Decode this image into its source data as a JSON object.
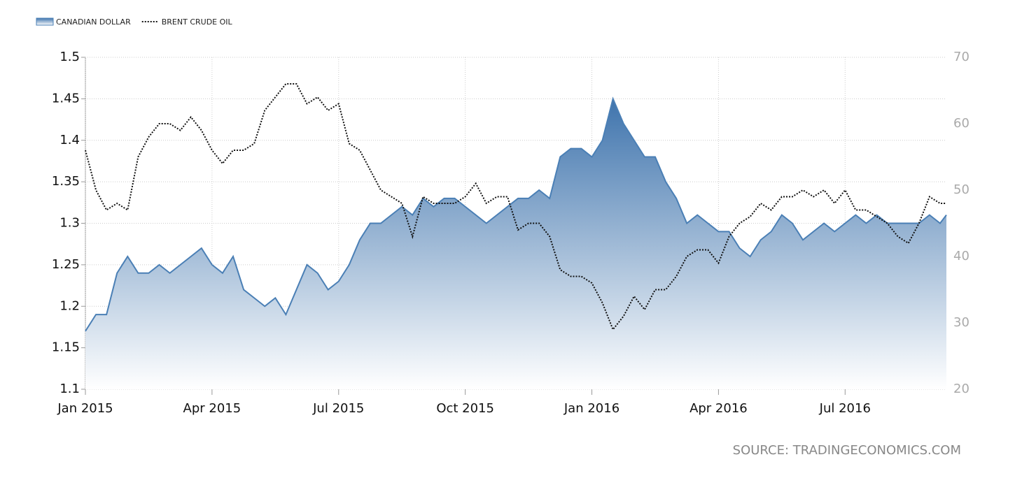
{
  "chart_data": {
    "type": "area",
    "source": "SOURCE: TRADINGECONOMICS.COM",
    "x": [
      0,
      0.25,
      0.5,
      0.75,
      1,
      1.25,
      1.5,
      1.75,
      2,
      2.25,
      2.5,
      2.75,
      3,
      3.25,
      3.5,
      3.75,
      4,
      4.25,
      4.5,
      4.75,
      5,
      5.25,
      5.5,
      5.75,
      6,
      6.25,
      6.5,
      6.75,
      7,
      7.25,
      7.5,
      7.75,
      8,
      8.25,
      8.5,
      8.75,
      9,
      9.25,
      9.5,
      9.75,
      10,
      10.25,
      10.5,
      10.75,
      11,
      11.25,
      11.5,
      11.75,
      12,
      12.25,
      12.5,
      12.75,
      13,
      13.25,
      13.5,
      13.75,
      14,
      14.25,
      14.5,
      14.75,
      15,
      15.25,
      15.5,
      15.75,
      16,
      16.25,
      16.5,
      16.75,
      17,
      17.25,
      17.5,
      17.75,
      18,
      18.25,
      18.5,
      18.75,
      19,
      19.25,
      19.5,
      19.75,
      20,
      20.25,
      20.4
    ],
    "xlim": [
      0,
      20.4
    ],
    "xticks": [
      {
        "value": 0,
        "label": "Jan 2015"
      },
      {
        "value": 3,
        "label": "Apr 2015"
      },
      {
        "value": 6,
        "label": "Jul 2015"
      },
      {
        "value": 9,
        "label": "Oct 2015"
      },
      {
        "value": 12,
        "label": "Jan 2016"
      },
      {
        "value": 15,
        "label": "Apr 2016"
      },
      {
        "value": 18,
        "label": "Jul 2016"
      }
    ],
    "ylim": [
      1.1,
      1.5
    ],
    "yticks": [
      1.1,
      1.15,
      1.2,
      1.25,
      1.3,
      1.35,
      1.4,
      1.45,
      1.5
    ],
    "y2lim": [
      20,
      70
    ],
    "y2ticks": [
      20,
      30,
      40,
      50,
      60,
      70
    ],
    "grid": true,
    "legend": "top-left",
    "series": [
      {
        "name": "CANADIAN DOLLAR",
        "color": "#4a7fb5",
        "kind": "area",
        "values": [
          1.17,
          1.19,
          1.19,
          1.24,
          1.26,
          1.24,
          1.24,
          1.25,
          1.24,
          1.25,
          1.26,
          1.27,
          1.25,
          1.24,
          1.26,
          1.22,
          1.21,
          1.2,
          1.21,
          1.19,
          1.22,
          1.25,
          1.24,
          1.22,
          1.23,
          1.25,
          1.28,
          1.3,
          1.3,
          1.31,
          1.32,
          1.31,
          1.33,
          1.32,
          1.33,
          1.33,
          1.32,
          1.31,
          1.3,
          1.31,
          1.32,
          1.33,
          1.33,
          1.34,
          1.33,
          1.38,
          1.39,
          1.39,
          1.38,
          1.4,
          1.45,
          1.42,
          1.4,
          1.38,
          1.38,
          1.35,
          1.33,
          1.3,
          1.31,
          1.3,
          1.29,
          1.29,
          1.27,
          1.26,
          1.28,
          1.29,
          1.31,
          1.3,
          1.28,
          1.29,
          1.3,
          1.29,
          1.3,
          1.31,
          1.3,
          1.31,
          1.3,
          1.3,
          1.3,
          1.3,
          1.31,
          1.3,
          1.31
        ]
      },
      {
        "name": "BRENT CRUDE OIL",
        "color": "#111111",
        "kind": "dotted",
        "axis": "y2",
        "values": [
          56,
          50,
          47,
          48,
          47,
          55,
          58,
          60,
          60,
          59,
          61,
          59,
          56,
          54,
          56,
          56,
          57,
          62,
          64,
          66,
          66,
          63,
          64,
          62,
          63,
          57,
          56,
          53,
          50,
          49,
          48,
          43,
          49,
          48,
          48,
          48,
          49,
          51,
          48,
          49,
          49,
          44,
          45,
          45,
          43,
          38,
          37,
          37,
          36,
          33,
          29,
          31,
          34,
          32,
          35,
          35,
          37,
          40,
          41,
          41,
          39,
          43,
          45,
          46,
          48,
          47,
          49,
          49,
          50,
          49,
          50,
          48,
          50,
          47,
          47,
          46,
          45,
          43,
          42,
          45,
          49,
          48,
          48
        ]
      }
    ]
  }
}
